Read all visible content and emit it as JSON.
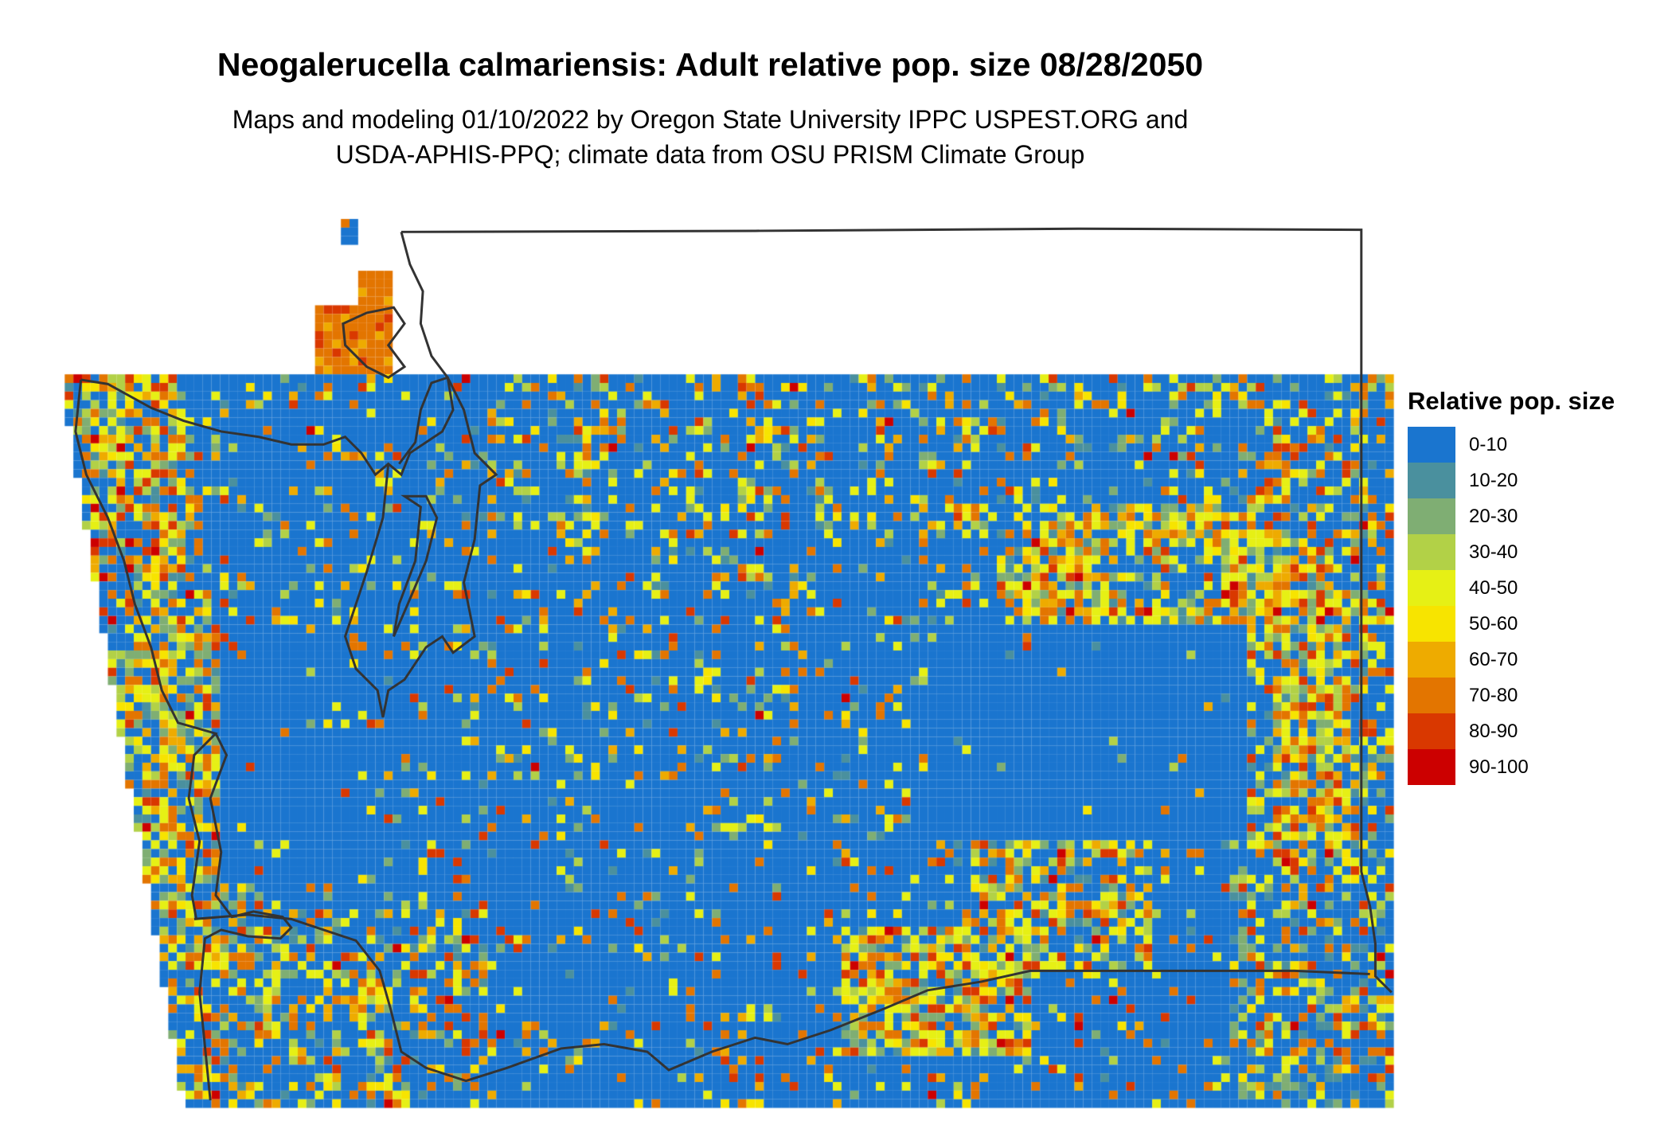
{
  "title": "Neogalerucella calmariensis: Adult relative pop. size 08/28/2050",
  "subtitle_line1": "Maps and modeling 01/10/2022 by Oregon State University IPPC USPEST.ORG and",
  "subtitle_line2": "USDA-APHIS-PPQ; climate data from OSU PRISM Climate Group",
  "legend": {
    "title": "Relative pop. size",
    "items": [
      {
        "label": "0-10",
        "color": "#1a75cf"
      },
      {
        "label": "10-20",
        "color": "#4a909e"
      },
      {
        "label": "20-30",
        "color": "#7fae73"
      },
      {
        "label": "30-40",
        "color": "#b2d147"
      },
      {
        "label": "40-50",
        "color": "#e6f015"
      },
      {
        "label": "50-60",
        "color": "#f7e400"
      },
      {
        "label": "60-70",
        "color": "#eeab00"
      },
      {
        "label": "70-80",
        "color": "#e37500"
      },
      {
        "label": "80-90",
        "color": "#d93800"
      },
      {
        "label": "90-100",
        "color": "#cc0000"
      }
    ]
  },
  "boundary_color": "#333333"
}
